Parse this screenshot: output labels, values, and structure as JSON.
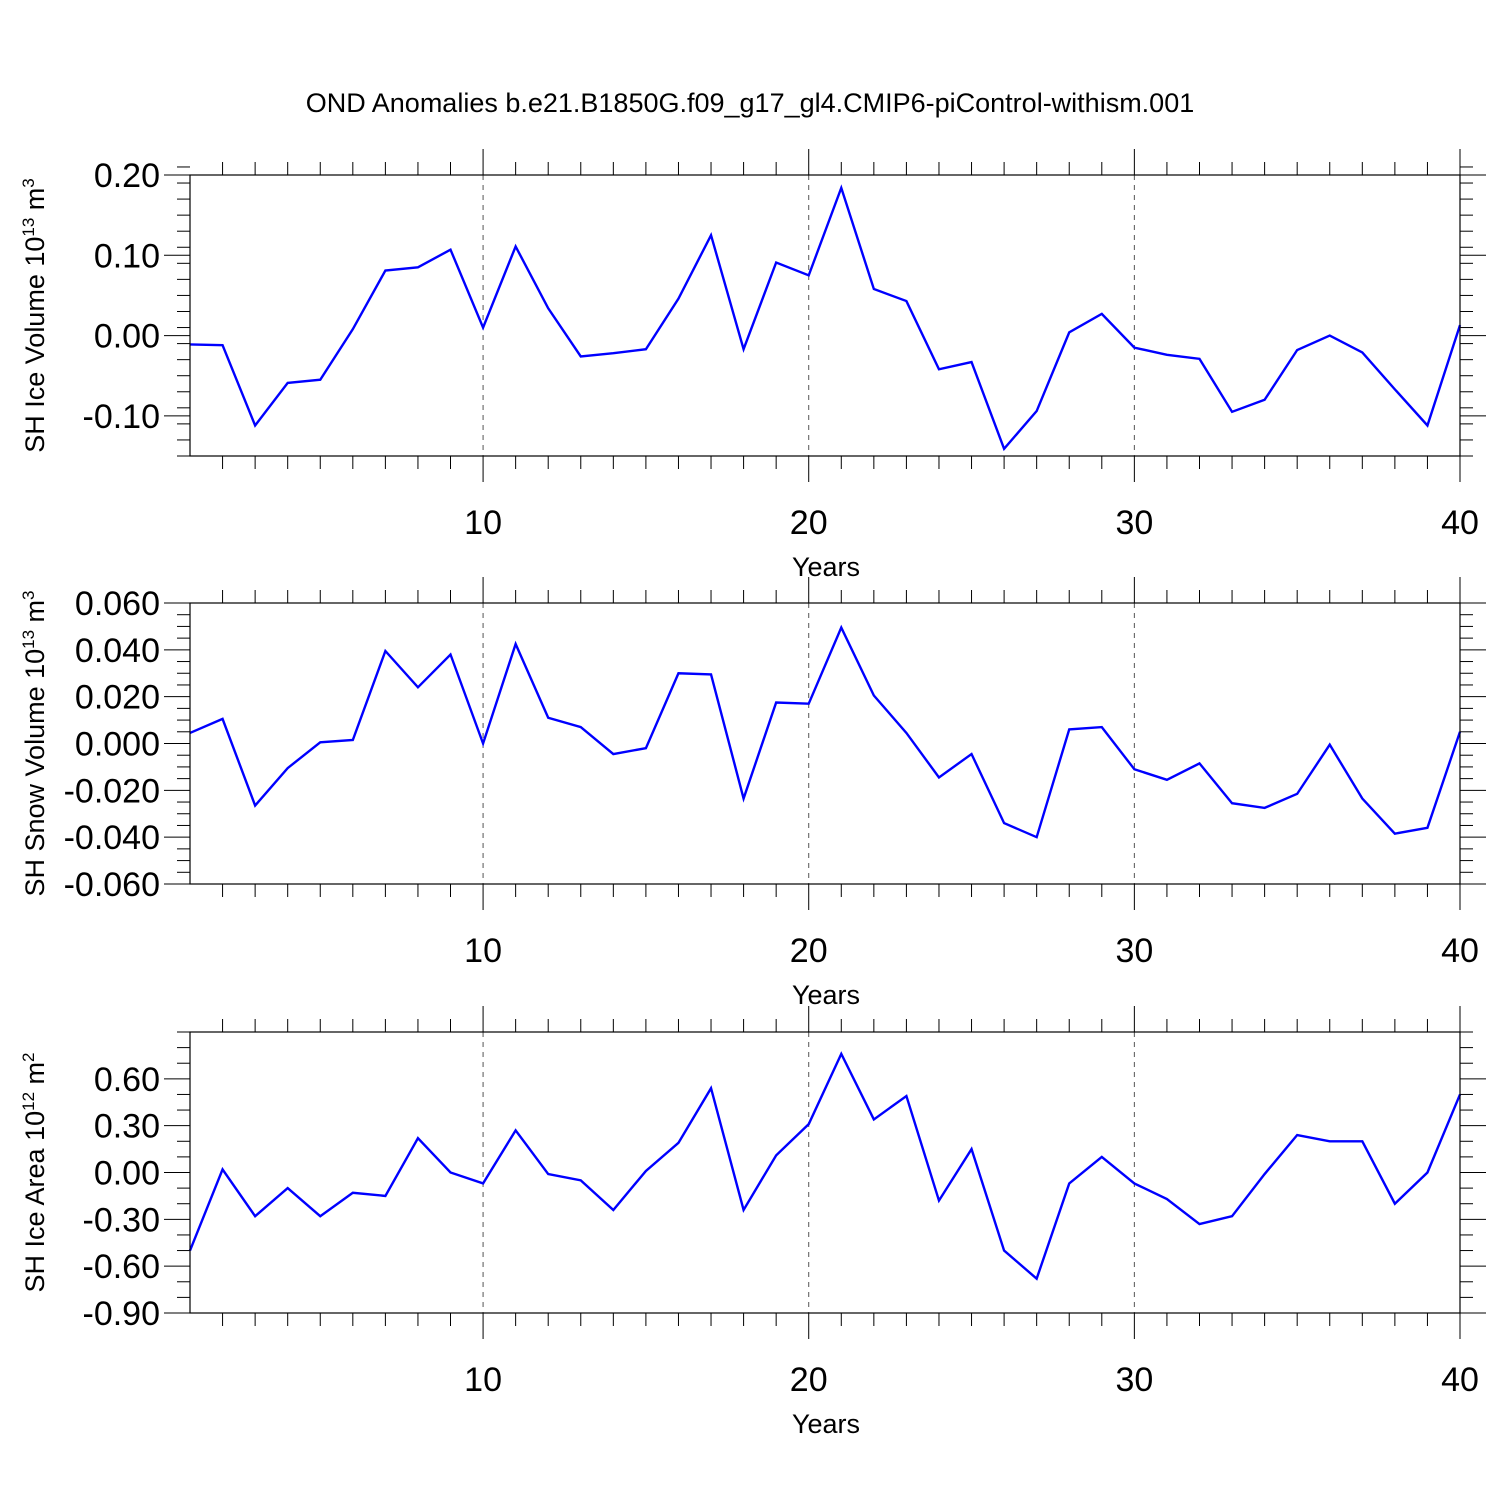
{
  "title": "OND Anomalies b.e21.B1850G.f09_g17_gl4.CMIP6-piControl-withism.001",
  "line_color": "#0000ff",
  "chart_data": [
    {
      "type": "line",
      "xlabel": "Years",
      "ylabel": {
        "main": "SH Ice Volume 10",
        "exp": "13",
        "unit_main": " m",
        "unit_exp": "3"
      },
      "xlim": [
        1,
        40
      ],
      "ylim": [
        -0.15,
        0.2
      ],
      "xticks": [
        10,
        20,
        30,
        40
      ],
      "yticks": [
        -0.1,
        0.0,
        0.1,
        0.2
      ],
      "ytick_labels": [
        "-0.10",
        "0.00",
        "0.10",
        "0.20"
      ],
      "yminor_step": 0.02,
      "grid_x": [
        10,
        20,
        30
      ],
      "x": [
        1,
        2,
        3,
        4,
        5,
        6,
        7,
        8,
        9,
        10,
        11,
        12,
        13,
        14,
        15,
        16,
        17,
        18,
        19,
        20,
        21,
        22,
        23,
        24,
        25,
        26,
        27,
        28,
        29,
        30,
        31,
        32,
        33,
        34,
        35,
        36,
        37,
        38,
        39,
        40
      ],
      "series": [
        {
          "values": [
            -0.011,
            -0.012,
            -0.112,
            -0.059,
            -0.055,
            0.008,
            0.081,
            0.085,
            0.107,
            0.01,
            0.111,
            0.034,
            -0.026,
            -0.022,
            -0.017,
            0.046,
            0.125,
            -0.017,
            0.091,
            0.075,
            0.184,
            0.058,
            0.043,
            -0.042,
            -0.033,
            -0.141,
            -0.094,
            0.004,
            0.027,
            -0.015,
            -0.024,
            -0.029,
            -0.095,
            -0.08,
            -0.018,
            0.0,
            -0.021,
            -0.067,
            -0.112,
            0.013
          ]
        }
      ]
    },
    {
      "type": "line",
      "xlabel": "Years",
      "ylabel": {
        "main": "SH Snow Volume 10",
        "exp": "13",
        "unit_main": " m",
        "unit_exp": "3"
      },
      "xlim": [
        1,
        40
      ],
      "ylim": [
        -0.06,
        0.06
      ],
      "xticks": [
        10,
        20,
        30,
        40
      ],
      "yticks": [
        -0.06,
        -0.04,
        -0.02,
        0.0,
        0.02,
        0.04,
        0.06
      ],
      "ytick_labels": [
        "-0.060",
        "-0.040",
        "-0.020",
        "0.000",
        "0.020",
        "0.040",
        "0.060"
      ],
      "yminor_step": 0.005,
      "grid_x": [
        10,
        20,
        30
      ],
      "x": [
        1,
        2,
        3,
        4,
        5,
        6,
        7,
        8,
        9,
        10,
        11,
        12,
        13,
        14,
        15,
        16,
        17,
        18,
        19,
        20,
        21,
        22,
        23,
        24,
        25,
        26,
        27,
        28,
        29,
        30,
        31,
        32,
        33,
        34,
        35,
        36,
        37,
        38,
        39,
        40
      ],
      "series": [
        {
          "values": [
            0.0045,
            0.0105,
            -0.0265,
            -0.0105,
            0.0005,
            0.0015,
            0.0395,
            0.024,
            0.038,
            0.0,
            0.0425,
            0.011,
            0.007,
            -0.0045,
            -0.002,
            0.03,
            0.0295,
            -0.0235,
            0.0175,
            0.017,
            0.0495,
            0.0205,
            0.0045,
            -0.0145,
            -0.0045,
            -0.034,
            -0.04,
            0.006,
            0.007,
            -0.011,
            -0.0155,
            -0.0085,
            -0.0255,
            -0.0275,
            -0.0215,
            -0.0005,
            -0.0235,
            -0.0385,
            -0.036,
            0.005
          ]
        }
      ]
    },
    {
      "type": "line",
      "xlabel": "Years",
      "ylabel": {
        "main": "SH Ice Area 10",
        "exp": "12",
        "unit_main": " m",
        "unit_exp": "2"
      },
      "xlim": [
        1,
        40
      ],
      "ylim": [
        -0.9,
        0.9
      ],
      "xticks": [
        10,
        20,
        30,
        40
      ],
      "yticks": [
        -0.9,
        -0.6,
        -0.3,
        0.0,
        0.3,
        0.6
      ],
      "ytick_labels": [
        "-0.90",
        "-0.60",
        "-0.30",
        "0.00",
        "0.30",
        "0.60"
      ],
      "yminor_step": 0.1,
      "grid_x": [
        10,
        20,
        30
      ],
      "x": [
        1,
        2,
        3,
        4,
        5,
        6,
        7,
        8,
        9,
        10,
        11,
        12,
        13,
        14,
        15,
        16,
        17,
        18,
        19,
        20,
        21,
        22,
        23,
        24,
        25,
        26,
        27,
        28,
        29,
        30,
        31,
        32,
        33,
        34,
        35,
        36,
        37,
        38,
        39,
        40
      ],
      "series": [
        {
          "values": [
            -0.5,
            0.02,
            -0.28,
            -0.1,
            -0.28,
            -0.13,
            -0.15,
            0.22,
            0.0,
            -0.07,
            0.27,
            -0.01,
            -0.05,
            -0.24,
            0.01,
            0.19,
            0.54,
            -0.24,
            0.11,
            0.31,
            0.76,
            0.34,
            0.49,
            -0.18,
            0.15,
            -0.5,
            -0.68,
            -0.07,
            0.1,
            -0.07,
            -0.17,
            -0.33,
            -0.28,
            -0.01,
            0.24,
            0.2,
            0.2,
            -0.2,
            0.0,
            0.5
          ]
        }
      ]
    }
  ]
}
